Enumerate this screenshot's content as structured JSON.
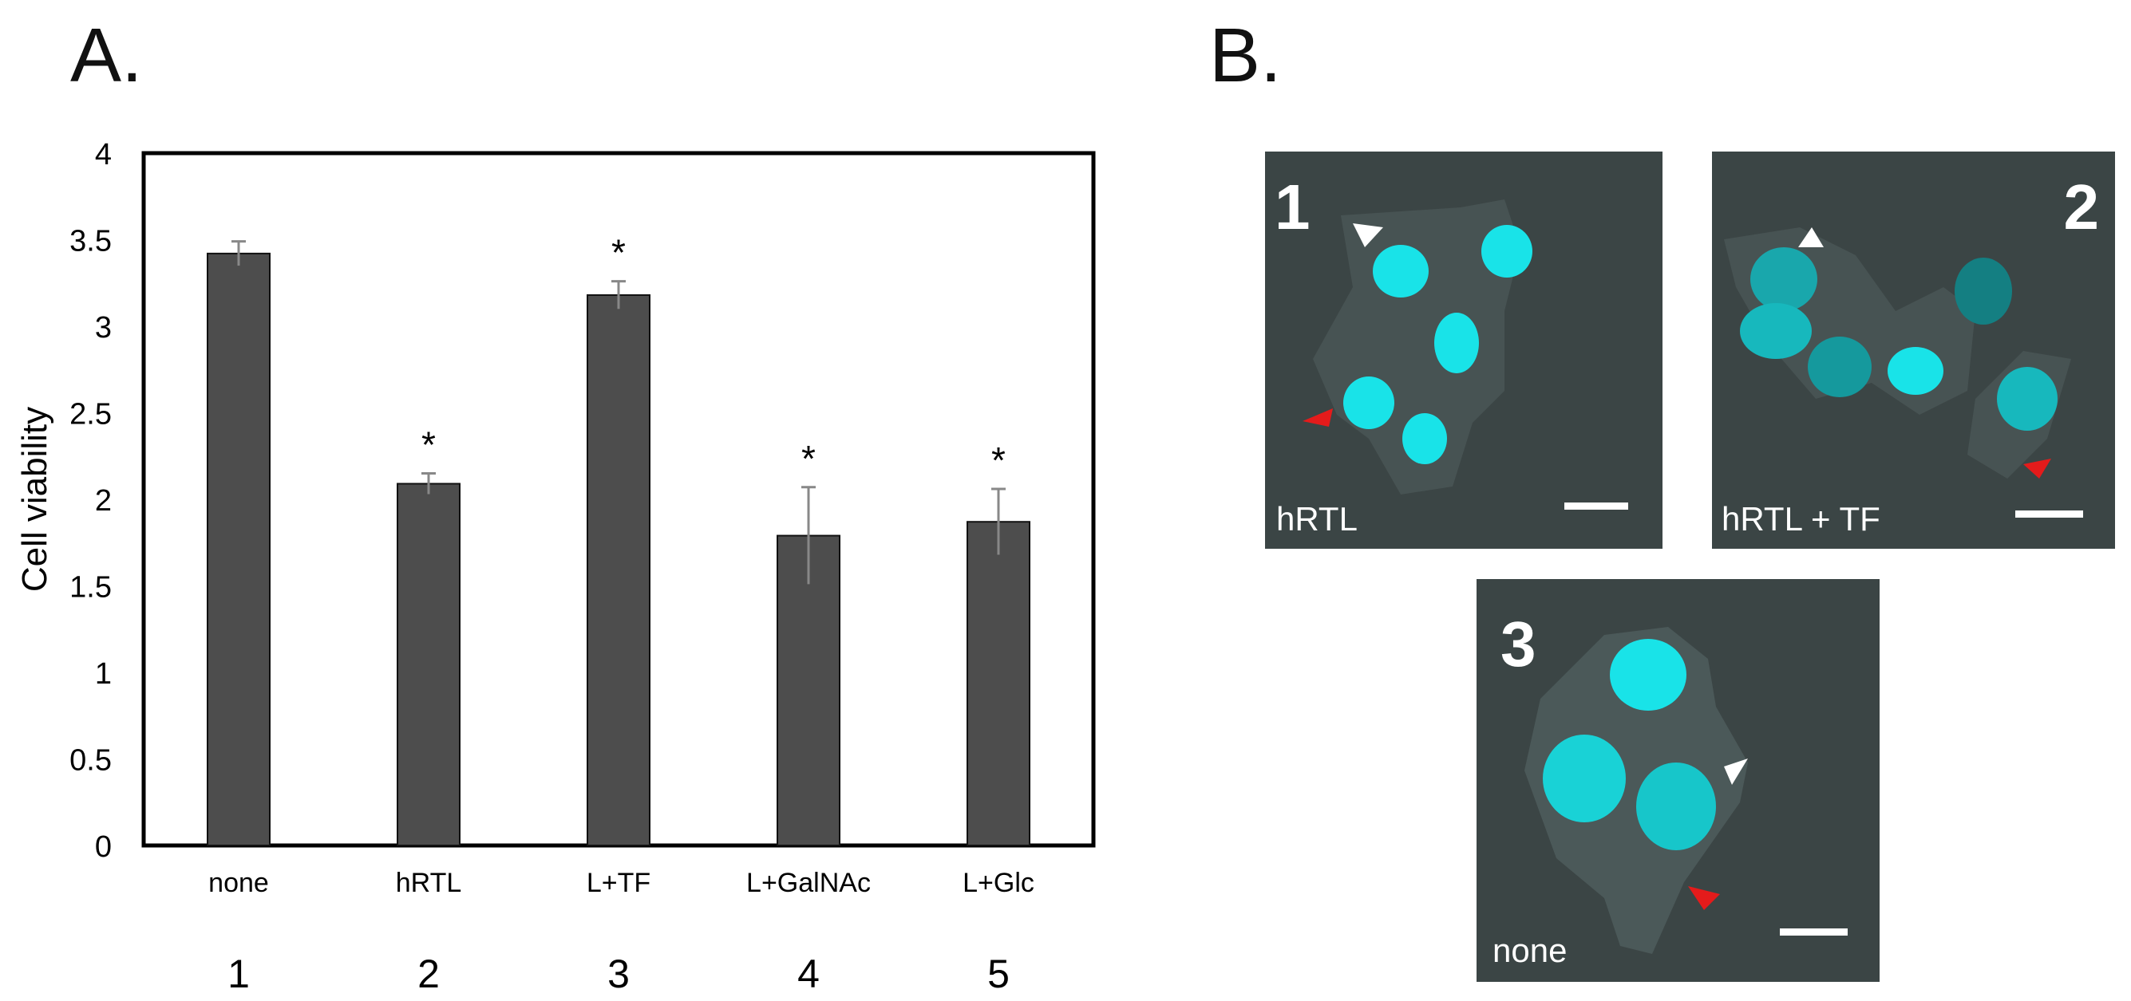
{
  "panels": {
    "a": {
      "letter": "A."
    },
    "b": {
      "letter": "B."
    }
  },
  "chart_data": {
    "type": "bar",
    "ylabel": "Cell viability",
    "xlabel": "",
    "ylim": [
      0,
      4
    ],
    "yticks": [
      "0",
      "0.5",
      "1",
      "1.5",
      "2",
      "2.5",
      "3",
      "3.5",
      "4"
    ],
    "categories": [
      "none",
      "hRTL",
      "L+TF",
      "L+GalNAc",
      "L+Glc"
    ],
    "lane_numbers": [
      "1",
      "2",
      "3",
      "4",
      "5"
    ],
    "values": [
      3.42,
      2.09,
      3.18,
      1.79,
      1.87
    ],
    "errors": [
      0.07,
      0.06,
      0.08,
      0.28,
      0.19
    ],
    "significance": [
      "",
      "*",
      "*",
      "*",
      "*"
    ],
    "bar_color": "#4d4d4d",
    "grid": false
  },
  "micrographs": [
    {
      "number": "1",
      "caption": "hRTL"
    },
    {
      "number": "2",
      "caption": "hRTL + TF"
    },
    {
      "number": "3",
      "caption": "none"
    }
  ],
  "colors": {
    "nucleus": "#19e3e8",
    "background": "#3b4545",
    "arrow_white": "#ffffff",
    "arrow_red": "#e41b1b"
  }
}
